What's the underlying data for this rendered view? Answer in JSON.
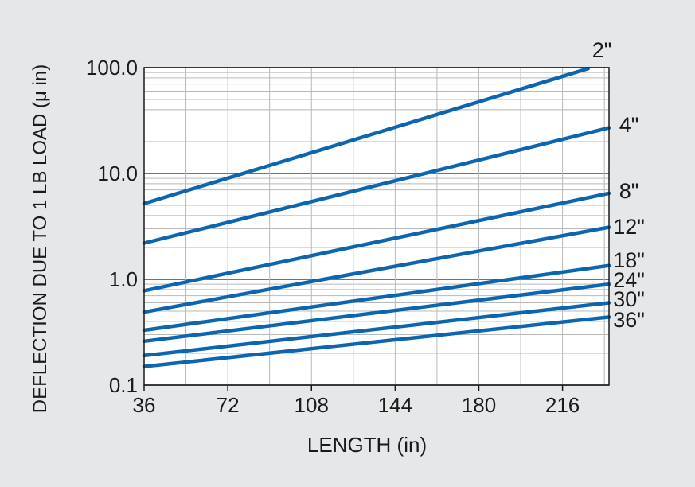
{
  "chart_data": {
    "type": "line",
    "title": "",
    "xlabel": "LENGTH (in)",
    "ylabel": "DEFLECTION DUE TO 1 LB LOAD (μ in)",
    "xlim": [
      36,
      236
    ],
    "ylim": [
      0.1,
      100.0
    ],
    "y_scale": "log",
    "grid": true,
    "legend": "line-end labels at right",
    "line_color": "#0b65b0",
    "x_ticks": [
      {
        "value": 36,
        "label": "36"
      },
      {
        "value": 72,
        "label": "72"
      },
      {
        "value": 108,
        "label": "108"
      },
      {
        "value": 144,
        "label": "144"
      },
      {
        "value": 180,
        "label": "180"
      },
      {
        "value": 216,
        "label": "216"
      }
    ],
    "y_ticks": [
      {
        "value": 0.1,
        "label": "0.1"
      },
      {
        "value": 1.0,
        "label": "1.0"
      },
      {
        "value": 10.0,
        "label": "10.0"
      },
      {
        "value": 100.0,
        "label": "100.0"
      }
    ],
    "series": [
      {
        "name": "2\"",
        "x": [
          36,
          227
        ],
        "y": [
          5.2,
          98
        ]
      },
      {
        "name": "4\"",
        "x": [
          36,
          236
        ],
        "y": [
          2.2,
          27
        ]
      },
      {
        "name": "8\"",
        "x": [
          36,
          236
        ],
        "y": [
          0.78,
          6.5
        ]
      },
      {
        "name": "12\"",
        "x": [
          36,
          236
        ],
        "y": [
          0.49,
          3.1
        ]
      },
      {
        "name": "18\"",
        "x": [
          36,
          236
        ],
        "y": [
          0.33,
          1.35
        ]
      },
      {
        "name": "24\"",
        "x": [
          36,
          236
        ],
        "y": [
          0.26,
          0.9
        ]
      },
      {
        "name": "30\"",
        "x": [
          36,
          236
        ],
        "y": [
          0.19,
          0.6
        ]
      },
      {
        "name": "36\"",
        "x": [
          36,
          236
        ],
        "y": [
          0.15,
          0.44
        ]
      }
    ]
  }
}
